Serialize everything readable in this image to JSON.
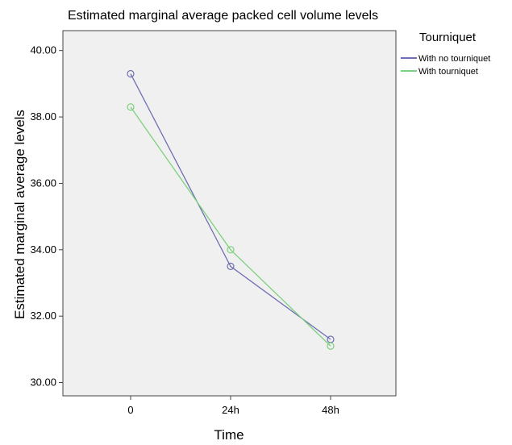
{
  "chart_data": {
    "type": "line",
    "title": "Estimated marginal average packed cell volume levels",
    "xlabel": "Time",
    "ylabel": "Estimated marginal average levels",
    "categories": [
      "0",
      "24h",
      "48h"
    ],
    "ylim": [
      29.6,
      40.6
    ],
    "yticks": [
      30,
      32,
      34,
      36,
      38,
      40
    ],
    "ytick_labels": [
      "30.00",
      "32.00",
      "34.00",
      "36.00",
      "38.00",
      "40.00"
    ],
    "grid": false,
    "legend": {
      "title": "Tourniquet",
      "placement": "right"
    },
    "series": [
      {
        "name": "With no tourniquet",
        "values": [
          39.3,
          33.5,
          31.3
        ],
        "color": "#6f6fb3"
      },
      {
        "name": "With tourniquet",
        "values": [
          38.3,
          34.0,
          31.1
        ],
        "color": "#7ed07e"
      }
    ],
    "plot_background": "#f0f0f0"
  }
}
